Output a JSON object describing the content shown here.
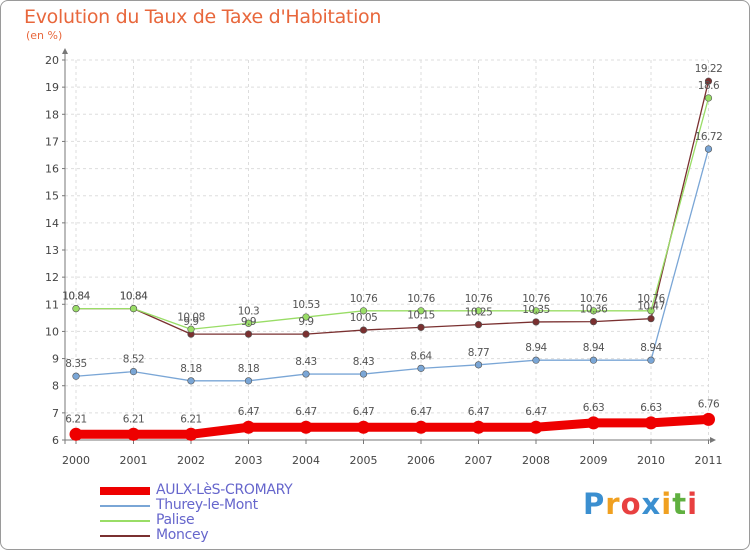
{
  "header": {
    "title": "Evolution du Taux de Taxe d'Habitation",
    "unit": "(en %)"
  },
  "chart_data": {
    "type": "line",
    "title": "Evolution du Taux de Taxe d'Habitation",
    "ylabel": "(en %)",
    "xlabel": "",
    "ylim": [
      6,
      20
    ],
    "yticks": [
      "6",
      "7",
      "8",
      "9",
      "10",
      "11",
      "12",
      "13",
      "14",
      "15",
      "16",
      "17",
      "18",
      "19",
      "20"
    ],
    "categories": [
      "2000",
      "2001",
      "2002",
      "2003",
      "2004",
      "2005",
      "2006",
      "2007",
      "2008",
      "2009",
      "2010",
      "2011"
    ],
    "series": [
      {
        "name": "AULX-LèS-CROMARY",
        "color": "#ee0000",
        "values": [
          6.21,
          6.21,
          6.21,
          6.47,
          6.47,
          6.47,
          6.47,
          6.47,
          6.47,
          6.63,
          6.63,
          6.76
        ],
        "labels": [
          "6.21",
          "6.21",
          "6.21",
          "6.47",
          "6.47",
          "6.47",
          "6.47",
          "6.47",
          "6.47",
          "6.63",
          "6.63",
          "6.76"
        ]
      },
      {
        "name": "Thurey-le-Mont",
        "color": "#7aa6d6",
        "values": [
          8.35,
          8.52,
          8.18,
          8.18,
          8.43,
          8.43,
          8.64,
          8.77,
          8.94,
          8.94,
          8.94,
          16.72
        ],
        "labels": [
          "8.35",
          "8.52",
          "8.18",
          "8.18",
          "8.43",
          "8.43",
          "8.64",
          "8.77",
          "8.94",
          "8.94",
          "8.94",
          "16.72"
        ]
      },
      {
        "name": "Palise",
        "color": "#99dd66",
        "values": [
          10.84,
          10.84,
          10.08,
          10.3,
          10.53,
          10.76,
          10.76,
          10.76,
          10.76,
          10.76,
          10.76,
          18.6
        ],
        "labels": [
          "10.84",
          "10.84",
          "10.08",
          "10.3",
          "10.53",
          "10.76",
          "10.76",
          "10.76",
          "10.76",
          "10.76",
          "10.76",
          "18.6"
        ]
      },
      {
        "name": "Moncey",
        "color": "#7a3030",
        "values": [
          10.84,
          10.84,
          9.9,
          9.9,
          9.9,
          10.05,
          10.15,
          10.25,
          10.35,
          10.36,
          10.47,
          19.22
        ],
        "labels": [
          "10.84",
          "10.84",
          "9.9",
          "9.9",
          "9.9",
          "10.05",
          "10.15",
          "10.25",
          "10.35",
          "10.36",
          "10.47",
          "19.22"
        ]
      }
    ],
    "legend_position": "bottom-left"
  },
  "legend": {
    "items": [
      {
        "label": "AULX-LèS-CROMARY"
      },
      {
        "label": "Thurey-le-Mont"
      },
      {
        "label": "Palise"
      },
      {
        "label": "Moncey"
      }
    ]
  },
  "logo": {
    "letters": [
      "P",
      "r",
      "o",
      "x",
      "i",
      "t",
      "i"
    ],
    "colors": [
      "#3b8fd0",
      "#f0a020",
      "#e84040",
      "#3b8fd0",
      "#f0a020",
      "#60b040",
      "#e84040"
    ]
  }
}
